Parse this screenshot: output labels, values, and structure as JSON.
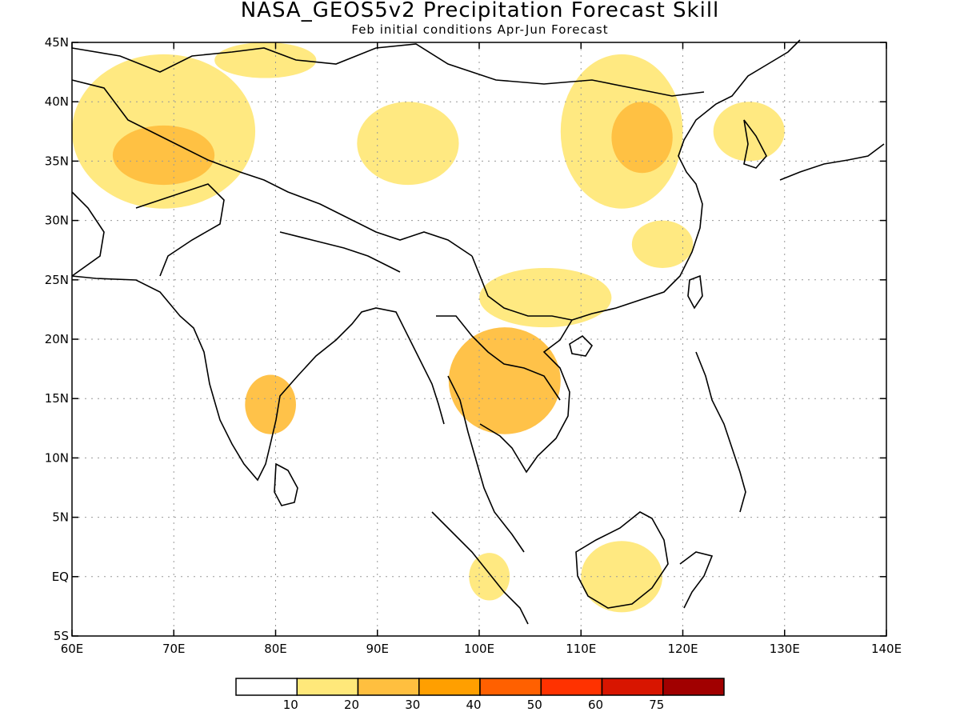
{
  "title": "NASA_GEOS5v2 Precipitation Forecast Skill",
  "subtitle": "Feb initial conditions  Apr-Jun Forecast",
  "map": {
    "lon_range": [
      60,
      140
    ],
    "lat_range": [
      -5,
      45
    ],
    "lat_labels": [
      "45N",
      "40N",
      "35N",
      "30N",
      "25N",
      "20N",
      "15N",
      "10N",
      "5N",
      "EQ",
      "5S"
    ],
    "lon_labels": [
      "60E",
      "70E",
      "80E",
      "90E",
      "100E",
      "110E",
      "120E",
      "130E",
      "140E"
    ],
    "gridlines": true,
    "regions": [
      {
        "name": "central-asia",
        "level": 1,
        "lon": [
          60,
          78
        ],
        "lat": [
          31,
          44
        ]
      },
      {
        "name": "afghanistan",
        "level": 2,
        "lon": [
          64,
          74
        ],
        "lat": [
          33,
          38
        ]
      },
      {
        "name": "kazakh-north",
        "level": 1,
        "lon": [
          74,
          84
        ],
        "lat": [
          42,
          45
        ]
      },
      {
        "name": "tibet",
        "level": 1,
        "lon": [
          88,
          98
        ],
        "lat": [
          33,
          40
        ]
      },
      {
        "name": "north-china",
        "level": 1,
        "lon": [
          108,
          120
        ],
        "lat": [
          31,
          44
        ]
      },
      {
        "name": "north-china-core",
        "level": 2,
        "lon": [
          113,
          119
        ],
        "lat": [
          34,
          40
        ]
      },
      {
        "name": "korea",
        "level": 1,
        "lon": [
          123,
          130
        ],
        "lat": [
          35,
          40
        ]
      },
      {
        "name": "yangtze",
        "level": 1,
        "lon": [
          115,
          121
        ],
        "lat": [
          26,
          30
        ]
      },
      {
        "name": "indochina",
        "level": 2,
        "lon": [
          97,
          108
        ],
        "lat": [
          12,
          21
        ]
      },
      {
        "name": "south-china",
        "level": 1,
        "lon": [
          100,
          113
        ],
        "lat": [
          21,
          26
        ]
      },
      {
        "name": "east-india",
        "level": 2,
        "lon": [
          77,
          82
        ],
        "lat": [
          12,
          17
        ]
      },
      {
        "name": "borneo",
        "level": 1,
        "lon": [
          110,
          118
        ],
        "lat": [
          -3,
          3
        ]
      },
      {
        "name": "sumatra",
        "level": 1,
        "lon": [
          99,
          103
        ],
        "lat": [
          -2,
          2
        ]
      }
    ]
  },
  "colorbar": {
    "colors": [
      "#ffffff",
      "#ffe87a",
      "#ffbf3f",
      "#ff9f00",
      "#ff6000",
      "#ff3200",
      "#d81500",
      "#a10000"
    ],
    "labels": [
      "10",
      "20",
      "30",
      "40",
      "50",
      "60",
      "75"
    ]
  }
}
